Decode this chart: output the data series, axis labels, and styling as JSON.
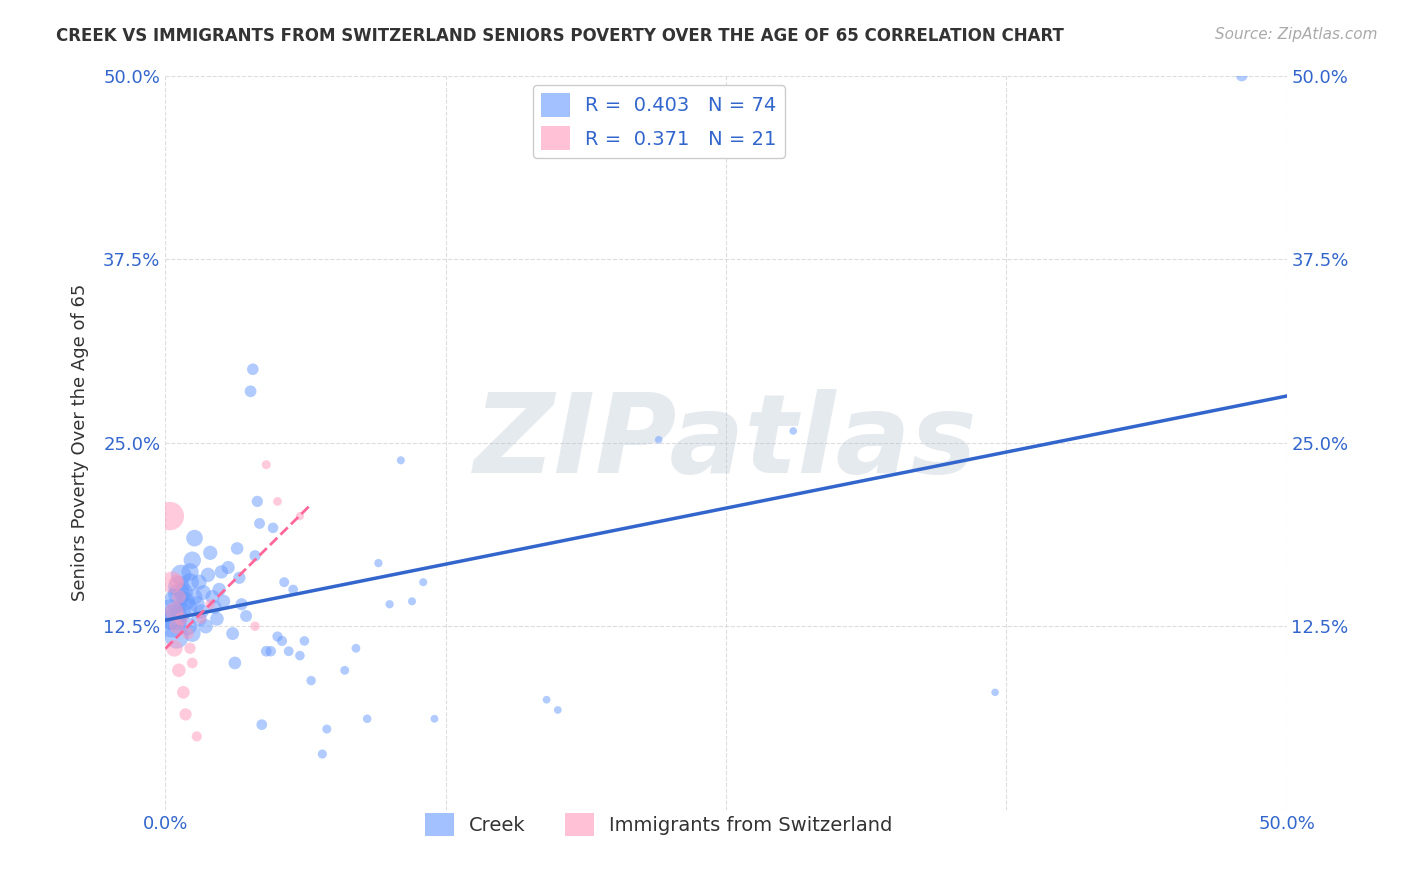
{
  "title": "CREEK VS IMMIGRANTS FROM SWITZERLAND SENIORS POVERTY OVER THE AGE OF 65 CORRELATION CHART",
  "source": "Source: ZipAtlas.com",
  "ylabel": "Seniors Poverty Over the Age of 65",
  "xlim": [
    0,
    0.5
  ],
  "ylim": [
    0,
    0.5
  ],
  "grid_color": "#dddddd",
  "watermark": "ZIPatlas",
  "blue_color": "#6699ff",
  "pink_color": "#ff99bb",
  "blue_line_color": "#3366cc",
  "pink_line_color": "#ff6699",
  "R_blue": 0.403,
  "N_blue": 74,
  "R_pink": 0.371,
  "N_pink": 21,
  "legend_label_blue": "Creek",
  "legend_label_pink": "Immigrants from Switzerland",
  "tick_color": "#3366cc",
  "blue_scatter": [
    [
      0.002,
      0.133
    ],
    [
      0.003,
      0.127
    ],
    [
      0.004,
      0.131
    ],
    [
      0.005,
      0.118
    ],
    [
      0.005,
      0.143
    ],
    [
      0.006,
      0.147
    ],
    [
      0.006,
      0.152
    ],
    [
      0.007,
      0.16
    ],
    [
      0.007,
      0.135
    ],
    [
      0.008,
      0.148
    ],
    [
      0.009,
      0.142
    ],
    [
      0.01,
      0.138
    ],
    [
      0.01,
      0.125
    ],
    [
      0.011,
      0.155
    ],
    [
      0.011,
      0.162
    ],
    [
      0.012,
      0.17
    ],
    [
      0.012,
      0.12
    ],
    [
      0.013,
      0.185
    ],
    [
      0.013,
      0.145
    ],
    [
      0.014,
      0.14
    ],
    [
      0.015,
      0.155
    ],
    [
      0.015,
      0.13
    ],
    [
      0.016,
      0.135
    ],
    [
      0.017,
      0.148
    ],
    [
      0.018,
      0.125
    ],
    [
      0.019,
      0.16
    ],
    [
      0.02,
      0.175
    ],
    [
      0.021,
      0.145
    ],
    [
      0.022,
      0.138
    ],
    [
      0.023,
      0.13
    ],
    [
      0.024,
      0.15
    ],
    [
      0.025,
      0.162
    ],
    [
      0.026,
      0.142
    ],
    [
      0.028,
      0.165
    ],
    [
      0.03,
      0.12
    ],
    [
      0.031,
      0.1
    ],
    [
      0.032,
      0.178
    ],
    [
      0.033,
      0.158
    ],
    [
      0.034,
      0.14
    ],
    [
      0.036,
      0.132
    ],
    [
      0.038,
      0.285
    ],
    [
      0.039,
      0.3
    ],
    [
      0.04,
      0.173
    ],
    [
      0.041,
      0.21
    ],
    [
      0.042,
      0.195
    ],
    [
      0.043,
      0.058
    ],
    [
      0.045,
      0.108
    ],
    [
      0.047,
      0.108
    ],
    [
      0.048,
      0.192
    ],
    [
      0.05,
      0.118
    ],
    [
      0.052,
      0.115
    ],
    [
      0.053,
      0.155
    ],
    [
      0.055,
      0.108
    ],
    [
      0.057,
      0.15
    ],
    [
      0.06,
      0.105
    ],
    [
      0.062,
      0.115
    ],
    [
      0.065,
      0.088
    ],
    [
      0.07,
      0.038
    ],
    [
      0.072,
      0.055
    ],
    [
      0.08,
      0.095
    ],
    [
      0.085,
      0.11
    ],
    [
      0.09,
      0.062
    ],
    [
      0.095,
      0.168
    ],
    [
      0.1,
      0.14
    ],
    [
      0.105,
      0.238
    ],
    [
      0.11,
      0.142
    ],
    [
      0.115,
      0.155
    ],
    [
      0.12,
      0.062
    ],
    [
      0.17,
      0.075
    ],
    [
      0.175,
      0.068
    ],
    [
      0.22,
      0.252
    ],
    [
      0.28,
      0.258
    ],
    [
      0.37,
      0.08
    ],
    [
      0.48,
      0.5
    ]
  ],
  "pink_scatter": [
    [
      0.002,
      0.2
    ],
    [
      0.003,
      0.155
    ],
    [
      0.004,
      0.135
    ],
    [
      0.004,
      0.11
    ],
    [
      0.005,
      0.155
    ],
    [
      0.005,
      0.125
    ],
    [
      0.006,
      0.145
    ],
    [
      0.006,
      0.095
    ],
    [
      0.007,
      0.13
    ],
    [
      0.008,
      0.08
    ],
    [
      0.009,
      0.065
    ],
    [
      0.01,
      0.12
    ],
    [
      0.011,
      0.11
    ],
    [
      0.012,
      0.1
    ],
    [
      0.014,
      0.05
    ],
    [
      0.016,
      0.13
    ],
    [
      0.02,
      0.14
    ],
    [
      0.04,
      0.125
    ],
    [
      0.045,
      0.235
    ],
    [
      0.05,
      0.21
    ],
    [
      0.06,
      0.2
    ]
  ],
  "blue_sizes": [
    480,
    420,
    360,
    300,
    300,
    240,
    240,
    216,
    204,
    192,
    180,
    180,
    168,
    168,
    156,
    156,
    144,
    144,
    132,
    132,
    120,
    120,
    114,
    114,
    108,
    108,
    106,
    102,
    98,
    96,
    94,
    94,
    90,
    90,
    86,
    84,
    82,
    78,
    76,
    74,
    72,
    70,
    66,
    66,
    62,
    60,
    60,
    58,
    58,
    54,
    54,
    52,
    50,
    50,
    48,
    48,
    46,
    43,
    42,
    41,
    40,
    38,
    36,
    36,
    34,
    34,
    34,
    32,
    31,
    31,
    30,
    30,
    29,
    72
  ],
  "pink_sizes": [
    420,
    240,
    180,
    144,
    120,
    114,
    102,
    96,
    90,
    84,
    78,
    72,
    66,
    60,
    54,
    50,
    48,
    46,
    42,
    40,
    36
  ]
}
